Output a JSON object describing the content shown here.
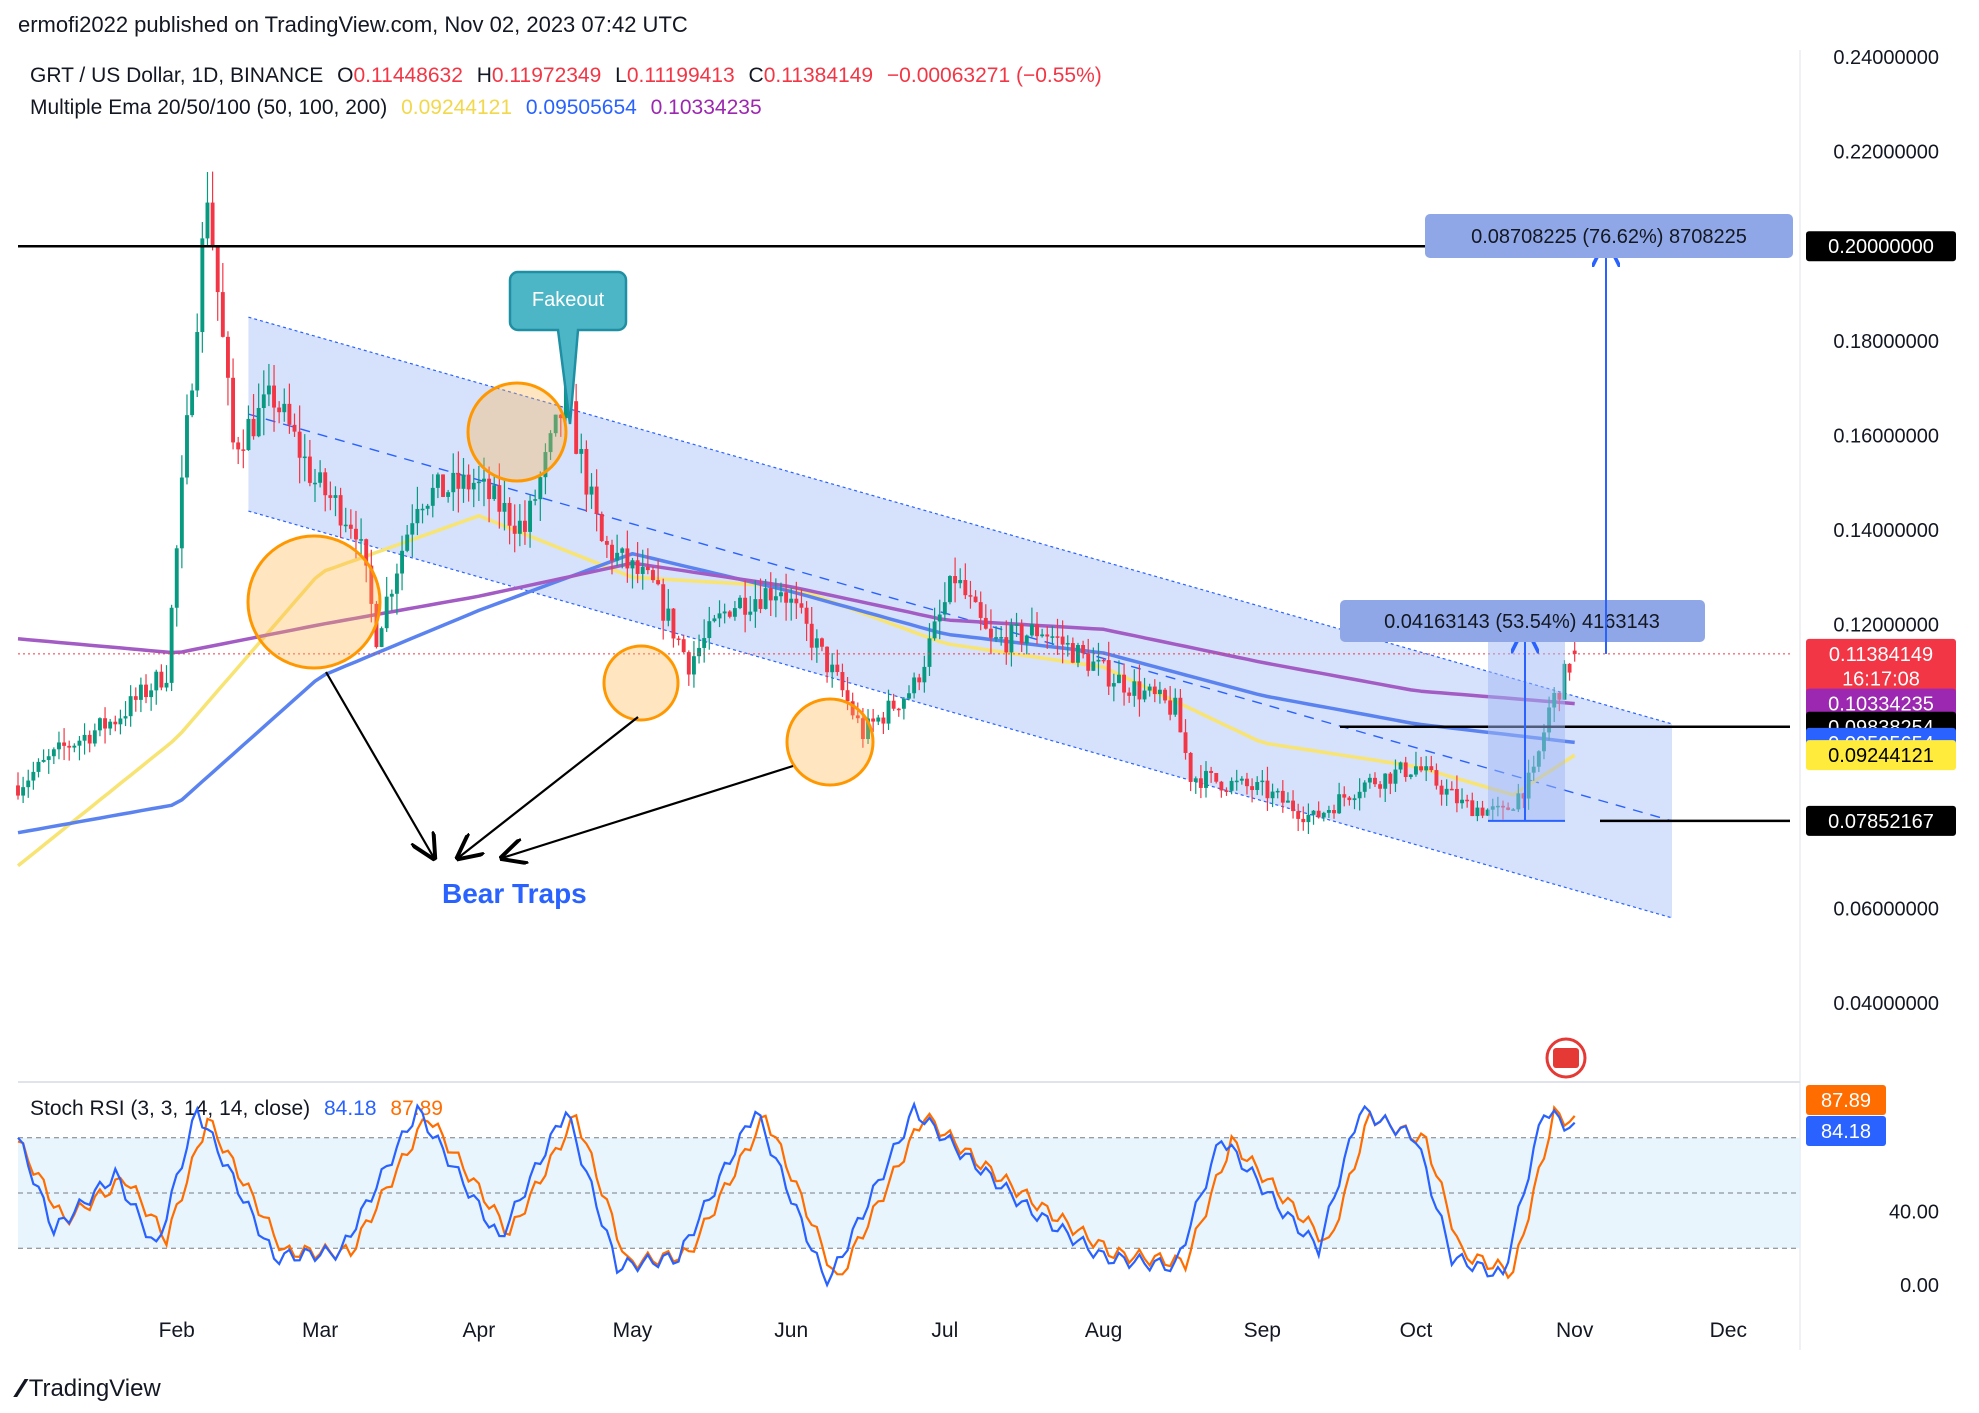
{
  "header": {
    "published": "ermofi2022 published on TradingView.com, Nov 02, 2023 07:42 UTC"
  },
  "legend": {
    "symbol": "GRT / US Dollar, 1D, BINANCE",
    "open_label": "O",
    "open": "0.11448632",
    "high_label": "H",
    "high": "0.11972349",
    "low_label": "L",
    "low": "0.11199413",
    "close_label": "C",
    "close": "0.11384149",
    "change": "−0.00063271 (−0.55%)",
    "indicator_name": "Multiple Ema 20/50/100 (50, 100, 200)",
    "ema_values": [
      "0.09244121",
      "0.09505654",
      "0.10334235"
    ]
  },
  "stoch_legend": {
    "name": "Stoch RSI (3, 3, 14, 14, close)",
    "k": "84.18",
    "d": "87.89"
  },
  "price_axis": {
    "ticks": [
      "0.24000000",
      "0.22000000",
      "0.20000000",
      "0.18000000",
      "0.16000000",
      "0.14000000",
      "0.12000000",
      "0.06000000",
      "0.04000000"
    ],
    "badges": [
      {
        "text": "0.11384149",
        "bg": "#f23645",
        "price": 0.1138
      },
      {
        "text": "16:17:08",
        "bg": "#f23645",
        "price": 0.1086
      },
      {
        "text": "0.10334235",
        "bg": "#9c27b0",
        "price": 0.1033
      },
      {
        "text": "0.09838254",
        "bg": "#000000",
        "price": 0.0984
      },
      {
        "text": "0.09505654",
        "bg": "#2962ff",
        "price": 0.095
      },
      {
        "text": "0.09244121",
        "bg": "#ffeb3b",
        "fg": "#000000",
        "price": 0.0924
      },
      {
        "text": "0.07852167",
        "bg": "#000000",
        "price": 0.0785
      },
      {
        "text": "0.20000000",
        "bg": "#000000",
        "price": 0.2
      }
    ]
  },
  "stoch_axis": {
    "ticks": [
      "40.00",
      "0.00"
    ],
    "badges": [
      {
        "text": "87.89",
        "bg": "#ff6d00",
        "value": 87.89
      },
      {
        "text": "84.18",
        "bg": "#2962ff",
        "value": 84.18
      }
    ]
  },
  "time_axis": {
    "labels": [
      "Feb",
      "Mar",
      "Apr",
      "May",
      "Jun",
      "Jul",
      "Aug",
      "Sep",
      "Oct",
      "Nov",
      "Dec"
    ]
  },
  "annotations": {
    "fakeout": "Fakeout",
    "bear_traps": "Bear Traps",
    "measure_small": "0.04163143 (53.54%) 4163143",
    "measure_large": "0.08708225 (76.62%) 8708225"
  },
  "colors": {
    "up": "#089981",
    "down": "#f23645",
    "ema50": "#f7e473",
    "ema100": "#5b83f0",
    "ema200": "#a35cc3",
    "channel_fill": "#cfdcfb",
    "stoch_k": "#2962ff",
    "stoch_d": "#ff6d00",
    "fakeout_fill": "#4db6c6",
    "measure_label_bg": "#8fa7e6",
    "bear_traps_text": "#2962ff"
  },
  "chart_data": {
    "type": "candlestick",
    "title": "GRT / US Dollar, 1D, BINANCE",
    "x_range": [
      "2023-01-01",
      "2023-12-15"
    ],
    "ylim": [
      0.03,
      0.245
    ],
    "log_scale": false,
    "grid": false,
    "close_path": [
      [
        "2023-01-01",
        0.086
      ],
      [
        "2023-01-10",
        0.094
      ],
      [
        "2023-01-20",
        0.1
      ],
      [
        "2023-01-30",
        0.11
      ],
      [
        "2023-02-07",
        0.212
      ],
      [
        "2023-02-12",
        0.158
      ],
      [
        "2023-02-20",
        0.168
      ],
      [
        "2023-02-28",
        0.15
      ],
      [
        "2023-03-08",
        0.141
      ],
      [
        "2023-03-12",
        0.118
      ],
      [
        "2023-03-20",
        0.147
      ],
      [
        "2023-03-31",
        0.15
      ],
      [
        "2023-04-10",
        0.14
      ],
      [
        "2023-04-18",
        0.168
      ],
      [
        "2023-04-25",
        0.137
      ],
      [
        "2023-05-05",
        0.128
      ],
      [
        "2023-05-12",
        0.112
      ],
      [
        "2023-05-20",
        0.124
      ],
      [
        "2023-05-30",
        0.128
      ],
      [
        "2023-06-10",
        0.108
      ],
      [
        "2023-06-15",
        0.097
      ],
      [
        "2023-06-25",
        0.107
      ],
      [
        "2023-07-03",
        0.13
      ],
      [
        "2023-07-10",
        0.116
      ],
      [
        "2023-07-20",
        0.119
      ],
      [
        "2023-08-01",
        0.11
      ],
      [
        "2023-08-15",
        0.102
      ],
      [
        "2023-08-18",
        0.088
      ],
      [
        "2023-09-01",
        0.085
      ],
      [
        "2023-09-11",
        0.079
      ],
      [
        "2023-09-20",
        0.086
      ],
      [
        "2023-10-01",
        0.09
      ],
      [
        "2023-10-10",
        0.082
      ],
      [
        "2023-10-18",
        0.08
      ],
      [
        "2023-10-24",
        0.088
      ],
      [
        "2023-10-27",
        0.102
      ],
      [
        "2023-11-01",
        0.1138
      ]
    ],
    "ema_series": [
      {
        "name": "EMA 50",
        "color": "#f7e473",
        "values": [
          [
            "2023-01-01",
            0.069
          ],
          [
            "2023-02-01",
            0.096
          ],
          [
            "2023-03-01",
            0.131
          ],
          [
            "2023-04-01",
            0.143
          ],
          [
            "2023-05-01",
            0.13
          ],
          [
            "2023-06-01",
            0.128
          ],
          [
            "2023-07-01",
            0.116
          ],
          [
            "2023-08-01",
            0.111
          ],
          [
            "2023-09-01",
            0.095
          ],
          [
            "2023-10-01",
            0.09
          ],
          [
            "2023-10-20",
            0.084
          ],
          [
            "2023-11-01",
            0.0924
          ]
        ]
      },
      {
        "name": "EMA 100",
        "color": "#5b83f0",
        "values": [
          [
            "2023-01-01",
            0.076
          ],
          [
            "2023-02-01",
            0.082
          ],
          [
            "2023-03-01",
            0.109
          ],
          [
            "2023-04-01",
            0.123
          ],
          [
            "2023-05-01",
            0.135
          ],
          [
            "2023-06-01",
            0.127
          ],
          [
            "2023-07-01",
            0.118
          ],
          [
            "2023-08-01",
            0.114
          ],
          [
            "2023-09-01",
            0.105
          ],
          [
            "2023-10-01",
            0.099
          ],
          [
            "2023-11-01",
            0.0951
          ]
        ]
      },
      {
        "name": "EMA 200",
        "color": "#a35cc3",
        "values": [
          [
            "2023-01-01",
            0.117
          ],
          [
            "2023-02-01",
            0.114
          ],
          [
            "2023-03-01",
            0.12
          ],
          [
            "2023-04-01",
            0.126
          ],
          [
            "2023-05-01",
            0.133
          ],
          [
            "2023-06-01",
            0.128
          ],
          [
            "2023-07-01",
            0.121
          ],
          [
            "2023-08-01",
            0.119
          ],
          [
            "2023-09-01",
            0.112
          ],
          [
            "2023-10-01",
            0.106
          ],
          [
            "2023-11-01",
            0.1033
          ]
        ]
      }
    ],
    "horizontal_levels": [
      0.2,
      0.0984,
      0.0785
    ],
    "channel": {
      "upper": [
        [
          "2023-02-15",
          0.185
        ],
        [
          "2023-11-20",
          0.099
        ]
      ],
      "lower": [
        [
          "2023-02-15",
          0.144
        ],
        [
          "2023-11-20",
          0.058
        ]
      ]
    },
    "measure_small": {
      "from": 0.0785,
      "to": 0.1201,
      "label": "0.04163143 (53.54%) 4163143"
    },
    "measure_large": {
      "from": 0.1138,
      "to": 0.2009,
      "label": "0.08708225 (76.62%) 8708225"
    },
    "stoch_rsi": {
      "ylim": [
        0,
        100
      ],
      "bands": [
        20,
        50,
        80
      ],
      "k_path": [
        [
          "2023-01-01",
          80
        ],
        [
          "2023-01-08",
          30
        ],
        [
          "2023-01-20",
          60
        ],
        [
          "2023-01-28",
          20
        ],
        [
          "2023-02-05",
          95
        ],
        [
          "2023-02-20",
          15
        ],
        [
          "2023-03-05",
          18
        ],
        [
          "2023-03-20",
          95
        ],
        [
          "2023-04-05",
          25
        ],
        [
          "2023-04-18",
          95
        ],
        [
          "2023-04-28",
          10
        ],
        [
          "2023-05-10",
          15
        ],
        [
          "2023-05-25",
          95
        ],
        [
          "2023-06-08",
          0
        ],
        [
          "2023-06-25",
          95
        ],
        [
          "2023-07-05",
          70
        ],
        [
          "2023-07-18",
          40
        ],
        [
          "2023-08-01",
          15
        ],
        [
          "2023-08-15",
          10
        ],
        [
          "2023-08-24",
          80
        ],
        [
          "2023-09-05",
          40
        ],
        [
          "2023-09-12",
          20
        ],
        [
          "2023-09-20",
          95
        ],
        [
          "2023-10-01",
          80
        ],
        [
          "2023-10-08",
          15
        ],
        [
          "2023-10-18",
          5
        ],
        [
          "2023-10-26",
          95
        ],
        [
          "2023-11-01",
          84.18
        ]
      ],
      "d_path": [
        [
          "2023-01-01",
          78
        ],
        [
          "2023-01-10",
          35
        ],
        [
          "2023-01-22",
          58
        ],
        [
          "2023-01-30",
          25
        ],
        [
          "2023-02-07",
          90
        ],
        [
          "2023-02-22",
          18
        ],
        [
          "2023-03-07",
          18
        ],
        [
          "2023-03-22",
          92
        ],
        [
          "2023-04-07",
          28
        ],
        [
          "2023-04-20",
          92
        ],
        [
          "2023-04-30",
          12
        ],
        [
          "2023-05-12",
          17
        ],
        [
          "2023-05-27",
          92
        ],
        [
          "2023-06-10",
          2
        ],
        [
          "2023-06-27",
          92
        ],
        [
          "2023-07-07",
          68
        ],
        [
          "2023-07-20",
          42
        ],
        [
          "2023-08-03",
          17
        ],
        [
          "2023-08-17",
          12
        ],
        [
          "2023-08-26",
          78
        ],
        [
          "2023-09-07",
          42
        ],
        [
          "2023-09-14",
          22
        ],
        [
          "2023-09-22",
          92
        ],
        [
          "2023-10-03",
          78
        ],
        [
          "2023-10-10",
          17
        ],
        [
          "2023-10-20",
          7
        ],
        [
          "2023-10-28",
          93
        ],
        [
          "2023-11-01",
          87.89
        ]
      ]
    }
  }
}
